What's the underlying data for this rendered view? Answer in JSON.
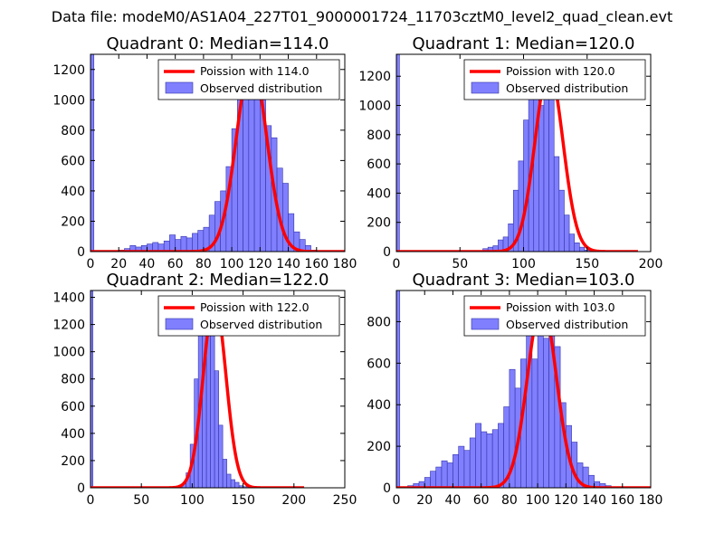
{
  "figure": {
    "suptitle": "Data file: modeM0/AS1A04_227T01_9000001724_11703cztM0_level2_quad_clean.evt",
    "colors": {
      "bar_fill": "#8080ff",
      "bar_edge": "#3333aa",
      "poisson_line": "#ff0000",
      "axes": "#000000"
    }
  },
  "chart_data": [
    {
      "type": "bar",
      "title": "Quadrant 0: Median=114.0",
      "legend": {
        "line_label": "Poission with 114.0",
        "bar_label": "Observed distribution",
        "placement": "top-right"
      },
      "xlim": [
        0,
        180
      ],
      "ylim": [
        0,
        1300
      ],
      "xticks": [
        0,
        20,
        40,
        60,
        80,
        100,
        120,
        140,
        160,
        180
      ],
      "yticks": [
        0,
        200,
        400,
        600,
        800,
        1000,
        1200
      ],
      "zero_bin_value": 1300,
      "bin_width": 4,
      "bin_start": 20,
      "values": [
        10,
        20,
        40,
        30,
        40,
        50,
        60,
        50,
        70,
        110,
        80,
        100,
        90,
        120,
        140,
        160,
        240,
        330,
        400,
        560,
        810,
        1040,
        1250,
        1150,
        1250,
        1000,
        830,
        750,
        550,
        450,
        250,
        130,
        80,
        40,
        10
      ],
      "poisson": {
        "mean": 114,
        "peak": 1250,
        "sigma": 10.68,
        "x_range": [
          0,
          180
        ]
      }
    },
    {
      "type": "bar",
      "title": "Quadrant 1: Median=120.0",
      "legend": {
        "line_label": "Poission with 120.0",
        "bar_label": "Observed distribution",
        "placement": "top-right"
      },
      "xlim": [
        0,
        200
      ],
      "ylim": [
        0,
        1350
      ],
      "xticks": [
        0,
        50,
        100,
        150,
        200
      ],
      "yticks": [
        0,
        200,
        400,
        600,
        800,
        1000,
        1200
      ],
      "zero_bin_value": 1350,
      "bin_width": 4,
      "bin_start": 68,
      "values": [
        20,
        30,
        40,
        80,
        100,
        190,
        420,
        620,
        900,
        1100,
        1280,
        1000,
        1200,
        1050,
        650,
        420,
        250,
        120,
        60,
        30,
        10
      ],
      "poisson": {
        "mean": 120,
        "peak": 1250,
        "sigma": 10.95,
        "x_range": [
          0,
          190
        ]
      }
    },
    {
      "type": "bar",
      "title": "Quadrant 2: Median=122.0",
      "legend": {
        "line_label": "Poission with 122.0",
        "bar_label": "Observed distribution",
        "placement": "top-right"
      },
      "xlim": [
        0,
        250
      ],
      "ylim": [
        0,
        1450
      ],
      "xticks": [
        0,
        50,
        100,
        150,
        200,
        250
      ],
      "yticks": [
        0,
        200,
        400,
        600,
        800,
        1000,
        1200,
        1400
      ],
      "zero_bin_value": 1450,
      "bin_width": 4,
      "bin_start": 86,
      "values": [
        10,
        30,
        110,
        320,
        800,
        1180,
        1380,
        1220,
        1380,
        860,
        460,
        210,
        100,
        60,
        40,
        15,
        8
      ],
      "poisson": {
        "mean": 122,
        "peak": 1380,
        "sigma": 11.05,
        "x_range": [
          0,
          210
        ]
      }
    },
    {
      "type": "bar",
      "title": "Quadrant 3: Median=103.0",
      "legend": {
        "line_label": "Poission with 103.0",
        "bar_label": "Observed distribution",
        "placement": "top-right"
      },
      "xlim": [
        0,
        180
      ],
      "ylim": [
        0,
        950
      ],
      "xticks": [
        0,
        20,
        40,
        60,
        80,
        100,
        120,
        140,
        160,
        180
      ],
      "yticks": [
        0,
        200,
        400,
        600,
        800
      ],
      "zero_bin_value": 950,
      "bin_width": 4,
      "bin_start": 8,
      "values": [
        10,
        20,
        30,
        50,
        80,
        100,
        130,
        120,
        160,
        200,
        180,
        240,
        310,
        270,
        260,
        280,
        310,
        390,
        570,
        480,
        620,
        900,
        620,
        900,
        720,
        810,
        680,
        410,
        300,
        220,
        120,
        100,
        60,
        30,
        20,
        10
      ],
      "poisson": {
        "mean": 103,
        "peak": 890,
        "sigma": 10.15,
        "x_range": [
          0,
          180
        ]
      }
    }
  ]
}
